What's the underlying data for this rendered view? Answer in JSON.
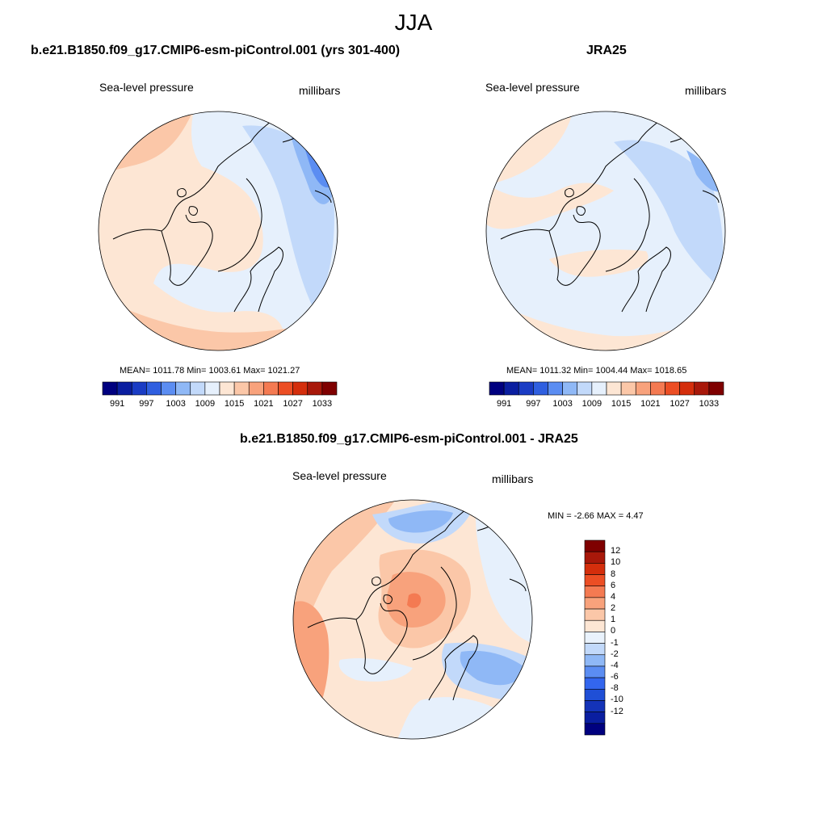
{
  "figure": {
    "season": "JJA",
    "variable": "Sea-level pressure",
    "units": "millibars"
  },
  "panel_model": {
    "title": "b.e21.B1850.f09_g17.CMIP6-esm-piControl.001 (yrs 301-400)",
    "stats_text": "MEAN= 1011.78  Min= 1003.61  Max= 1021.27",
    "stats": {
      "mean": 1011.78,
      "min": 1003.61,
      "max": 1021.27
    }
  },
  "panel_obs": {
    "title": "JRA25",
    "stats_text": "MEAN= 1011.32  Min= 1004.44  Max= 1018.65",
    "stats": {
      "mean": 1011.32,
      "min": 1004.44,
      "max": 1018.65
    }
  },
  "panel_diff": {
    "title": "b.e21.B1850.f09_g17.CMIP6-esm-piControl.001 - JRA25",
    "stats_text": "MIN =  -2.66 MAX =   4.47",
    "stats": {
      "min": -2.66,
      "max": 4.47
    }
  },
  "colorbar_abs": {
    "colors": [
      "#00007f",
      "#0a1ea0",
      "#1a3cc4",
      "#2f5fe0",
      "#5b8df2",
      "#8fb8f6",
      "#c2d9fa",
      "#e6f0fc",
      "#fde6d4",
      "#fbc7a8",
      "#f8a27c",
      "#f47a52",
      "#ec4e24",
      "#d42e0c",
      "#a8180a",
      "#7f0000"
    ],
    "ticks": [
      "991",
      "997",
      "1003",
      "1009",
      "1015",
      "1021",
      "1027",
      "1033"
    ]
  },
  "colorbar_diff": {
    "colors": [
      "#00007f",
      "#0a1ea0",
      "#1433b8",
      "#1f4fd6",
      "#3366ee",
      "#5b8df2",
      "#8fb8f6",
      "#c2d9fa",
      "#e9f2fc",
      "#fde6d4",
      "#fbc7a8",
      "#f8a27c",
      "#f47a52",
      "#ec4e24",
      "#d42e0c",
      "#a8180a",
      "#7f0000"
    ],
    "ticks": [
      "12",
      "10",
      "8",
      "6",
      "4",
      "2",
      "1",
      "0",
      "-1",
      "-2",
      "-4",
      "-6",
      "-8",
      "-10",
      "-12"
    ]
  },
  "chart_data": [
    {
      "type": "heatmap",
      "title": "b.e21.B1850.f09_g17.CMIP6-esm-piControl.001 (yrs 301-400)",
      "projection": "north polar stereographic",
      "field": "Sea-level pressure",
      "units": "millibars",
      "mean": 1011.78,
      "min": 1003.61,
      "max": 1021.27,
      "levels": [
        991,
        994,
        997,
        1000,
        1003,
        1006,
        1009,
        1012,
        1015,
        1018,
        1021,
        1024,
        1027,
        1030,
        1033
      ]
    },
    {
      "type": "heatmap",
      "title": "JRA25",
      "projection": "north polar stereographic",
      "field": "Sea-level pressure",
      "units": "millibars",
      "mean": 1011.32,
      "min": 1004.44,
      "max": 1018.65,
      "levels": [
        991,
        994,
        997,
        1000,
        1003,
        1006,
        1009,
        1012,
        1015,
        1018,
        1021,
        1024,
        1027,
        1030,
        1033
      ]
    },
    {
      "type": "heatmap",
      "title": "b.e21.B1850.f09_g17.CMIP6-esm-piControl.001 - JRA25",
      "projection": "north polar stereographic",
      "field": "Sea-level pressure difference",
      "units": "millibars",
      "min": -2.66,
      "max": 4.47,
      "levels": [
        -12,
        -10,
        -8,
        -6,
        -4,
        -2,
        -1,
        0,
        1,
        2,
        4,
        6,
        8,
        10,
        12
      ]
    }
  ]
}
